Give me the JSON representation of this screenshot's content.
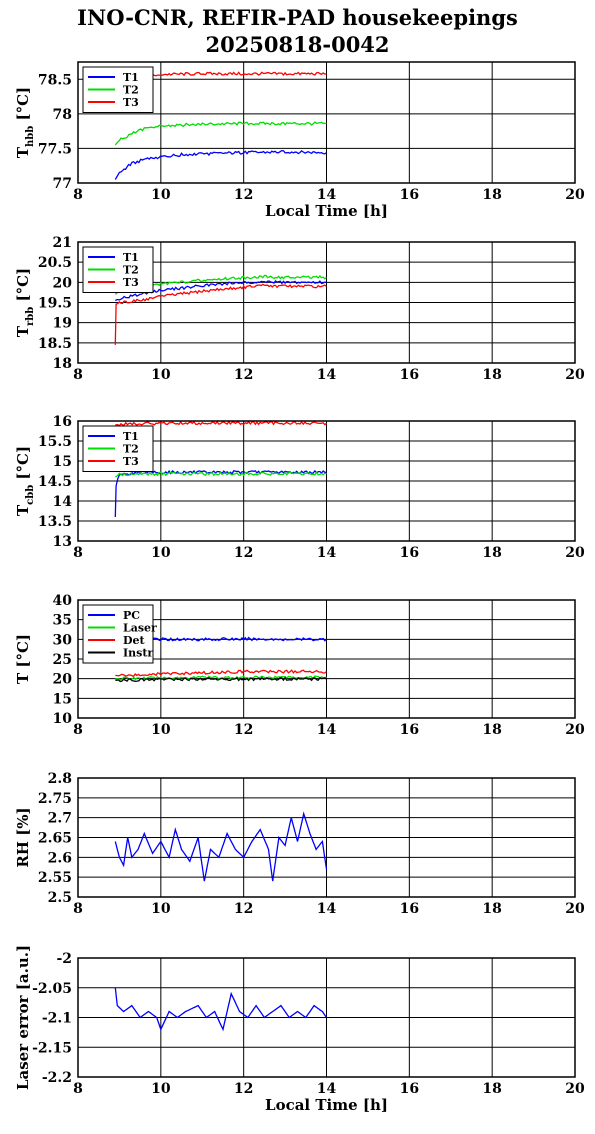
{
  "title": [
    "INO-CNR, REFIR-PAD housekeepings",
    "20250818-0042"
  ],
  "chart_data": [
    {
      "type": "line",
      "ylabel": {
        "main": "T",
        "sub": "hbb",
        "unit": " [°C]"
      },
      "xlabel": "Local Time [h]",
      "xlim": [
        8,
        20
      ],
      "ylim": [
        77,
        78.75
      ],
      "xticks": [
        "8",
        "10",
        "12",
        "14",
        "16",
        "18",
        "20"
      ],
      "yticks": [
        "77",
        "77.5",
        "78",
        "78.5"
      ],
      "grid": true,
      "legend": "top-left",
      "series": [
        {
          "name": "T1",
          "color": "#0000ff",
          "values": [
            [
              8.9,
              77.05
            ],
            [
              9.0,
              77.15
            ],
            [
              9.3,
              77.28
            ],
            [
              9.6,
              77.34
            ],
            [
              10.0,
              77.38
            ],
            [
              10.5,
              77.41
            ],
            [
              11.0,
              77.42
            ],
            [
              12.0,
              77.44
            ],
            [
              13.0,
              77.45
            ],
            [
              14.0,
              77.44
            ]
          ]
        },
        {
          "name": "T2",
          "color": "#00dd00",
          "values": [
            [
              8.9,
              77.55
            ],
            [
              9.0,
              77.62
            ],
            [
              9.3,
              77.72
            ],
            [
              9.6,
              77.78
            ],
            [
              10.0,
              77.82
            ],
            [
              10.5,
              77.84
            ],
            [
              11.0,
              77.85
            ],
            [
              12.0,
              77.86
            ],
            [
              13.0,
              77.86
            ],
            [
              14.0,
              77.86
            ]
          ]
        },
        {
          "name": "T3",
          "color": "#ff0000",
          "values": [
            [
              8.9,
              78.6
            ],
            [
              9.0,
              78.58
            ],
            [
              9.5,
              78.57
            ],
            [
              10.0,
              78.57
            ],
            [
              11.0,
              78.58
            ],
            [
              12.0,
              78.58
            ],
            [
              13.0,
              78.58
            ],
            [
              14.0,
              78.58
            ]
          ]
        }
      ]
    },
    {
      "type": "line",
      "ylabel": {
        "main": "T",
        "sub": "rbb",
        "unit": " [°C]"
      },
      "xlim": [
        8,
        20
      ],
      "ylim": [
        18,
        21
      ],
      "xticks": [
        "8",
        "10",
        "12",
        "14",
        "16",
        "18",
        "20"
      ],
      "yticks": [
        "18",
        "18.5",
        "19",
        "19.5",
        "20",
        "20.5",
        "21"
      ],
      "grid": true,
      "legend": "top-left",
      "series": [
        {
          "name": "T1",
          "color": "#0000ff",
          "values": [
            [
              8.9,
              19.55
            ],
            [
              9.0,
              19.6
            ],
            [
              9.5,
              19.7
            ],
            [
              10.0,
              19.8
            ],
            [
              11.0,
              19.92
            ],
            [
              12.0,
              20.0
            ],
            [
              12.5,
              20.02
            ],
            [
              13.0,
              20.0
            ],
            [
              14.0,
              20.0
            ]
          ]
        },
        {
          "name": "T2",
          "color": "#00dd00",
          "values": [
            [
              8.9,
              19.7
            ],
            [
              9.0,
              19.78
            ],
            [
              9.5,
              19.88
            ],
            [
              10.0,
              19.96
            ],
            [
              11.0,
              20.05
            ],
            [
              12.0,
              20.12
            ],
            [
              12.5,
              20.14
            ],
            [
              13.0,
              20.12
            ],
            [
              14.0,
              20.12
            ]
          ]
        },
        {
          "name": "T3",
          "color": "#ff0000",
          "values": [
            [
              8.9,
              18.45
            ],
            [
              8.92,
              19.45
            ],
            [
              9.0,
              19.5
            ],
            [
              9.5,
              19.55
            ],
            [
              10.0,
              19.65
            ],
            [
              11.0,
              19.78
            ],
            [
              12.0,
              19.88
            ],
            [
              12.5,
              19.92
            ],
            [
              13.0,
              19.9
            ],
            [
              14.0,
              19.9
            ]
          ]
        }
      ]
    },
    {
      "type": "line",
      "ylabel": {
        "main": "T",
        "sub": "cbb",
        "unit": " [°C]"
      },
      "xlim": [
        8,
        20
      ],
      "ylim": [
        13,
        16
      ],
      "xticks": [
        "8",
        "10",
        "12",
        "14",
        "16",
        "18",
        "20"
      ],
      "yticks": [
        "13",
        "13.5",
        "14",
        "14.5",
        "15",
        "15.5",
        "16"
      ],
      "grid": true,
      "legend": "top-left",
      "series": [
        {
          "name": "T1",
          "color": "#0000ff",
          "values": [
            [
              8.9,
              13.6
            ],
            [
              8.92,
              14.4
            ],
            [
              9.0,
              14.65
            ],
            [
              9.5,
              14.72
            ],
            [
              10.0,
              14.72
            ],
            [
              11.0,
              14.72
            ],
            [
              12.0,
              14.72
            ],
            [
              13.0,
              14.72
            ],
            [
              14.0,
              14.72
            ]
          ]
        },
        {
          "name": "T2",
          "color": "#00dd00",
          "values": [
            [
              8.9,
              14.6
            ],
            [
              9.0,
              14.66
            ],
            [
              9.5,
              14.68
            ],
            [
              10.0,
              14.68
            ],
            [
              11.0,
              14.68
            ],
            [
              12.0,
              14.68
            ],
            [
              13.0,
              14.68
            ],
            [
              14.0,
              14.68
            ]
          ]
        },
        {
          "name": "T3",
          "color": "#ff0000",
          "values": [
            [
              8.9,
              15.9
            ],
            [
              9.0,
              15.92
            ],
            [
              9.5,
              15.93
            ],
            [
              10.0,
              15.94
            ],
            [
              11.0,
              15.95
            ],
            [
              12.0,
              15.95
            ],
            [
              13.0,
              15.95
            ],
            [
              14.0,
              15.94
            ]
          ]
        }
      ]
    },
    {
      "type": "line",
      "ylabel": {
        "main": "T [°C]",
        "sub": "",
        "unit": ""
      },
      "xlim": [
        8,
        20
      ],
      "ylim": [
        10,
        40
      ],
      "xticks": [
        "8",
        "10",
        "12",
        "14",
        "16",
        "18",
        "20"
      ],
      "yticks": [
        "10",
        "15",
        "20",
        "25",
        "30",
        "35",
        "40"
      ],
      "grid": true,
      "legend": "top-left",
      "series": [
        {
          "name": "PC",
          "color": "#0000ff",
          "values": [
            [
              8.9,
              30.0
            ],
            [
              9.5,
              30.0
            ],
            [
              10.0,
              30.0
            ],
            [
              11.0,
              30.0
            ],
            [
              12.0,
              30.1
            ],
            [
              13.0,
              30.0
            ],
            [
              14.0,
              30.0
            ]
          ]
        },
        {
          "name": "Laser",
          "color": "#00dd00",
          "values": [
            [
              8.9,
              20.0
            ],
            [
              10.0,
              20.2
            ],
            [
              11.0,
              20.3
            ],
            [
              12.0,
              20.3
            ],
            [
              13.0,
              20.4
            ],
            [
              14.0,
              20.4
            ]
          ]
        },
        {
          "name": "Det",
          "color": "#ff0000",
          "values": [
            [
              8.9,
              20.8
            ],
            [
              9.5,
              21.0
            ],
            [
              10.0,
              21.2
            ],
            [
              11.0,
              21.5
            ],
            [
              12.0,
              21.8
            ],
            [
              13.0,
              21.8
            ],
            [
              14.0,
              21.8
            ]
          ]
        },
        {
          "name": "Instr",
          "color": "#000000",
          "values": [
            [
              8.9,
              19.6
            ],
            [
              10.0,
              19.8
            ],
            [
              11.0,
              19.9
            ],
            [
              12.0,
              19.9
            ],
            [
              13.0,
              19.9
            ],
            [
              14.0,
              19.9
            ]
          ]
        }
      ]
    },
    {
      "type": "line",
      "ylabel": {
        "main": "RH [%]",
        "sub": "",
        "unit": ""
      },
      "xlim": [
        8,
        20
      ],
      "ylim": [
        2.5,
        2.8
      ],
      "xticks": [
        "8",
        "10",
        "12",
        "14",
        "16",
        "18",
        "20"
      ],
      "yticks": [
        "2.5",
        "2.55",
        "2.6",
        "2.65",
        "2.7",
        "2.75",
        "2.8"
      ],
      "grid": true,
      "legend": "none",
      "series": [
        {
          "name": "",
          "color": "#0000ff",
          "values": [
            [
              8.9,
              2.64
            ],
            [
              9.0,
              2.6
            ],
            [
              9.1,
              2.58
            ],
            [
              9.2,
              2.65
            ],
            [
              9.3,
              2.6
            ],
            [
              9.45,
              2.62
            ],
            [
              9.6,
              2.66
            ],
            [
              9.8,
              2.61
            ],
            [
              10.0,
              2.64
            ],
            [
              10.2,
              2.6
            ],
            [
              10.35,
              2.67
            ],
            [
              10.5,
              2.62
            ],
            [
              10.7,
              2.59
            ],
            [
              10.9,
              2.65
            ],
            [
              11.05,
              2.54
            ],
            [
              11.2,
              2.62
            ],
            [
              11.4,
              2.6
            ],
            [
              11.6,
              2.66
            ],
            [
              11.8,
              2.62
            ],
            [
              12.0,
              2.6
            ],
            [
              12.2,
              2.64
            ],
            [
              12.4,
              2.67
            ],
            [
              12.6,
              2.62
            ],
            [
              12.7,
              2.54
            ],
            [
              12.85,
              2.65
            ],
            [
              13.0,
              2.63
            ],
            [
              13.15,
              2.7
            ],
            [
              13.3,
              2.64
            ],
            [
              13.45,
              2.71
            ],
            [
              13.6,
              2.66
            ],
            [
              13.75,
              2.62
            ],
            [
              13.9,
              2.64
            ],
            [
              14.0,
              2.57
            ]
          ]
        }
      ]
    },
    {
      "type": "line",
      "ylabel": {
        "main": "Laser error [a.u.]",
        "sub": "",
        "unit": ""
      },
      "xlabel": "Local Time [h]",
      "xlim": [
        8,
        20
      ],
      "ylim": [
        -2.2,
        -2.0
      ],
      "xticks": [
        "8",
        "10",
        "12",
        "14",
        "16",
        "18",
        "20"
      ],
      "yticks": [
        "-2.2",
        "-2.15",
        "-2.1",
        "-2.05",
        "-2"
      ],
      "grid": true,
      "legend": "none",
      "series": [
        {
          "name": "",
          "color": "#0000ff",
          "values": [
            [
              8.9,
              -2.05
            ],
            [
              8.95,
              -2.08
            ],
            [
              9.1,
              -2.09
            ],
            [
              9.3,
              -2.08
            ],
            [
              9.5,
              -2.1
            ],
            [
              9.7,
              -2.09
            ],
            [
              9.9,
              -2.1
            ],
            [
              10.0,
              -2.12
            ],
            [
              10.2,
              -2.09
            ],
            [
              10.4,
              -2.1
            ],
            [
              10.6,
              -2.09
            ],
            [
              10.9,
              -2.08
            ],
            [
              11.1,
              -2.1
            ],
            [
              11.3,
              -2.09
            ],
            [
              11.5,
              -2.12
            ],
            [
              11.7,
              -2.06
            ],
            [
              11.9,
              -2.09
            ],
            [
              12.1,
              -2.1
            ],
            [
              12.3,
              -2.08
            ],
            [
              12.5,
              -2.1
            ],
            [
              12.7,
              -2.09
            ],
            [
              12.9,
              -2.08
            ],
            [
              13.1,
              -2.1
            ],
            [
              13.3,
              -2.09
            ],
            [
              13.5,
              -2.1
            ],
            [
              13.7,
              -2.08
            ],
            [
              13.9,
              -2.09
            ],
            [
              14.0,
              -2.1
            ]
          ]
        }
      ]
    }
  ]
}
